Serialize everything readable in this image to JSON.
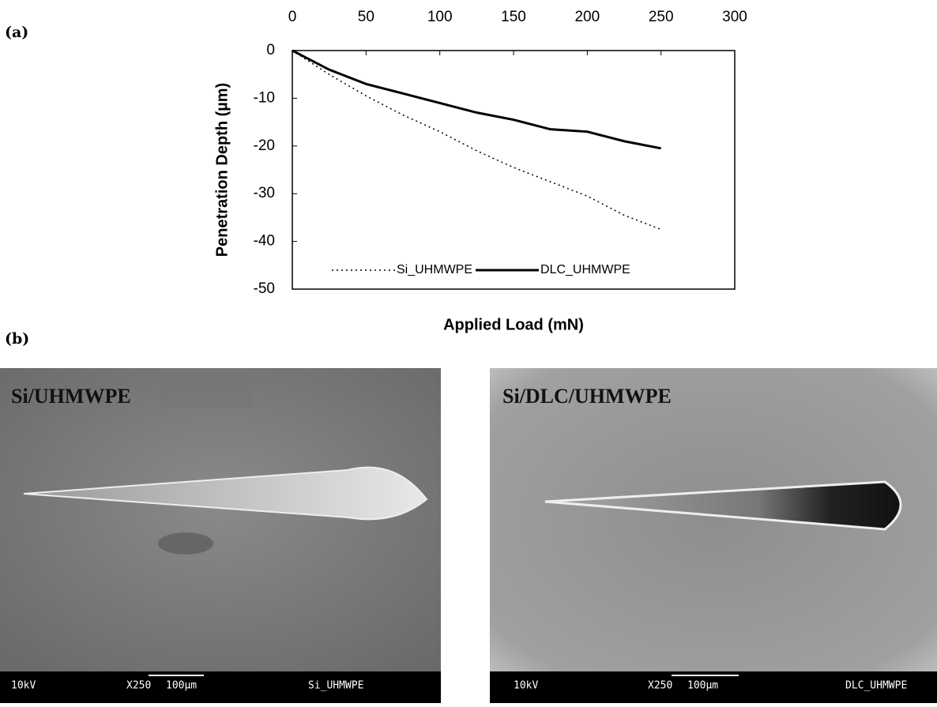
{
  "panel_a_label": "(a)",
  "chart_data": {
    "type": "line",
    "x_label": "Applied Load (mN)",
    "y_label": "Penetration Depth (µm)",
    "x": [
      0,
      25,
      50,
      75,
      100,
      125,
      150,
      175,
      200,
      225,
      250
    ],
    "series": [
      {
        "name": "Si_UHMWPE",
        "color": "#000000",
        "line_style": "dotted",
        "values": [
          0,
          -5,
          -9.5,
          -13.5,
          -17,
          -21,
          -24.5,
          -27.5,
          -30.5,
          -34.5,
          -37.5
        ]
      },
      {
        "name": "DLC_UHMWPE",
        "color": "#000000",
        "line_style": "solid",
        "values": [
          0,
          -4,
          -7,
          -9,
          -11,
          -13,
          -14.5,
          -16.5,
          -17,
          -19,
          -20.5
        ]
      }
    ],
    "xlim": [
      0,
      300
    ],
    "xticks": [
      0,
      50,
      100,
      150,
      200,
      250,
      300
    ],
    "x_axis_position": "top",
    "ylim": [
      -50,
      0
    ],
    "yticks": [
      0,
      -10,
      -20,
      -30,
      -40,
      -50
    ],
    "grid": false,
    "legend_position": "bottom"
  },
  "panel_b_label": "(b)",
  "images": [
    {
      "title": "Si/UHMWPE",
      "voltage": "10kV",
      "magnification": "X250",
      "scale": "100µm",
      "sample": "Si_UHMWPE"
    },
    {
      "title": "Si/DLC/UHMWPE",
      "voltage": "10kV",
      "magnification": "X250",
      "scale": "100µm",
      "sample": "DLC_UHMWPE"
    }
  ]
}
